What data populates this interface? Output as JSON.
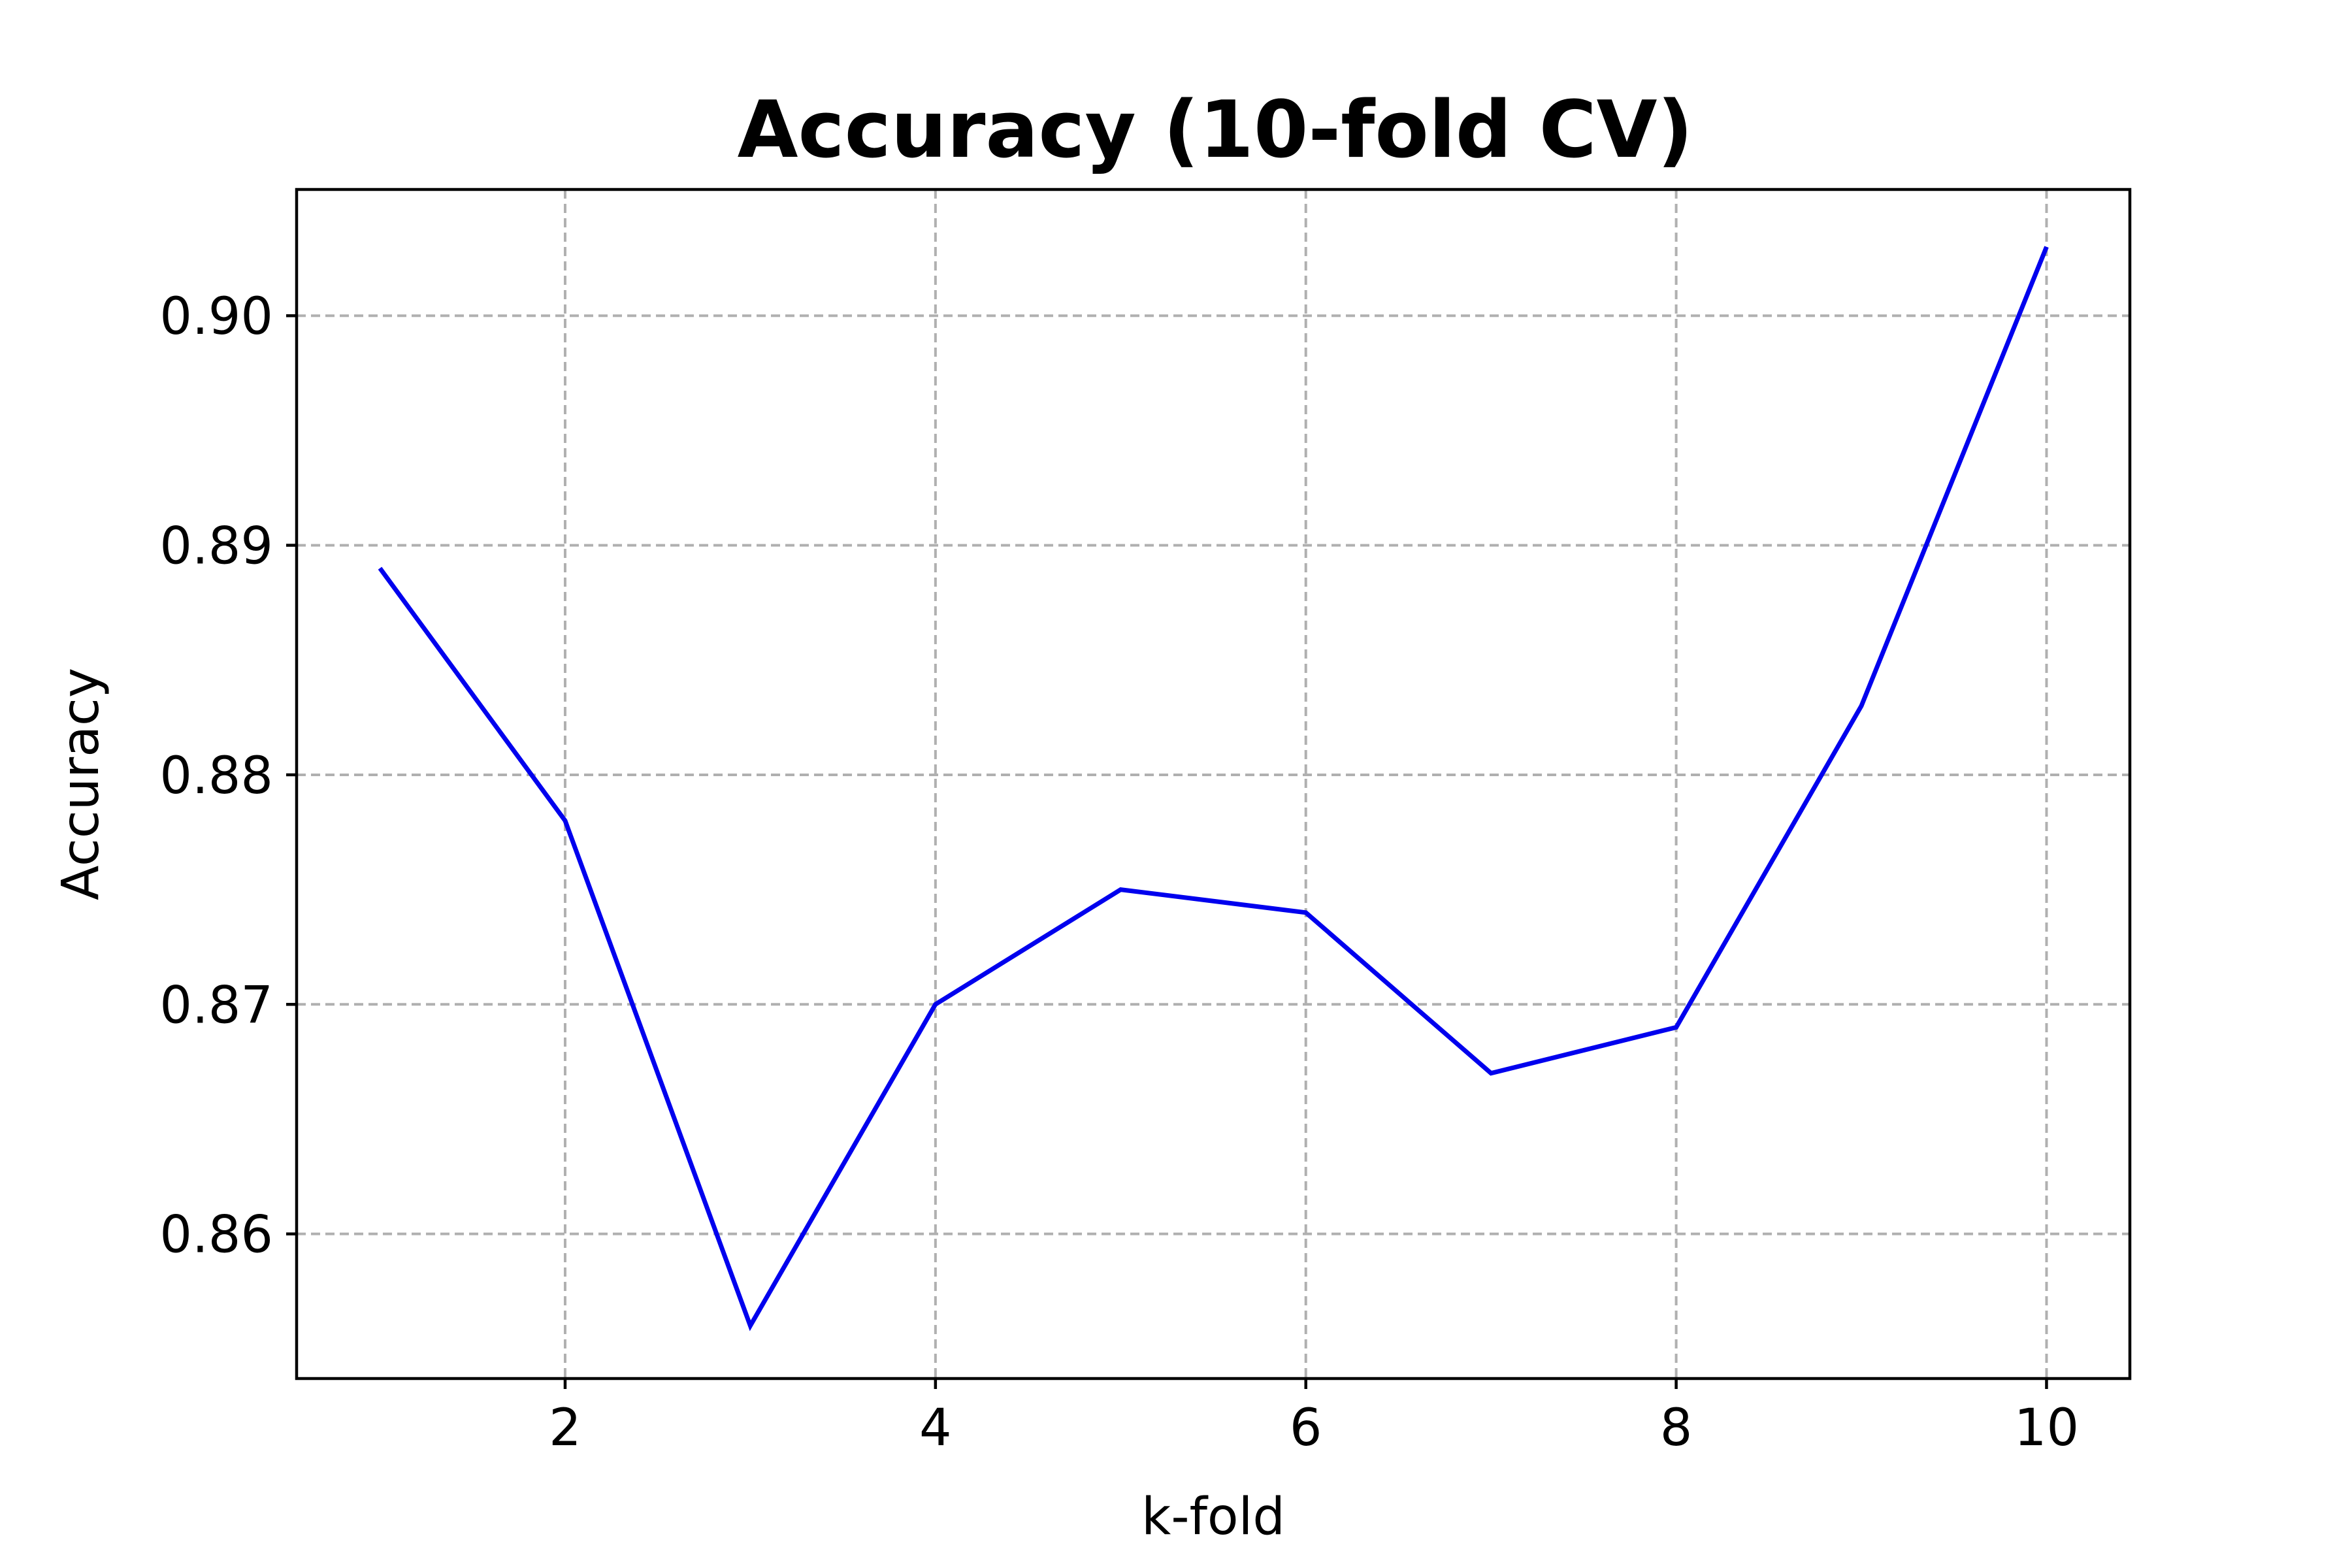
{
  "chart_data": {
    "type": "line",
    "title": "Accuracy (10-fold CV)",
    "xlabel": "k-fold",
    "ylabel": "Accuracy",
    "xlim": [
      0.55,
      10.45
    ],
    "ylim": [
      0.8537,
      0.9055
    ],
    "x_ticks": [
      2,
      4,
      6,
      8,
      10
    ],
    "x_tick_labels": [
      "2",
      "4",
      "6",
      "8",
      "10"
    ],
    "y_ticks": [
      0.86,
      0.87,
      0.88,
      0.89,
      0.9
    ],
    "y_tick_labels": [
      "0.86",
      "0.87",
      "0.88",
      "0.89",
      "0.90"
    ],
    "grid": true,
    "series": [
      {
        "color": "#0000ee",
        "x": [
          1,
          2,
          3,
          4,
          5,
          6,
          7,
          8,
          9,
          10
        ],
        "values": [
          0.889,
          0.878,
          0.856,
          0.87,
          0.875,
          0.874,
          0.867,
          0.869,
          0.883,
          0.903
        ]
      }
    ]
  }
}
